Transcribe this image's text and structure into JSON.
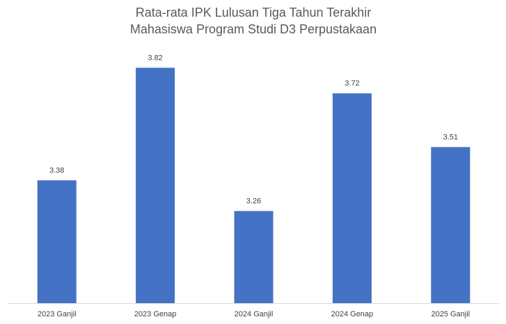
{
  "chart_data": {
    "type": "bar",
    "title": [
      "Rata-rata IPK Lulusan Tiga Tahun Terakhir",
      "Mahasiswa Program Studi D3 Perpustakaan"
    ],
    "categories": [
      "2023 Ganjil",
      "2023 Genap",
      "2024 Ganjil",
      "2024 Genap",
      "2025 Ganjil"
    ],
    "values": [
      3.38,
      3.82,
      3.26,
      3.72,
      3.51
    ],
    "color": "#4472c4",
    "ylim": [
      2.9,
      3.9
    ]
  }
}
